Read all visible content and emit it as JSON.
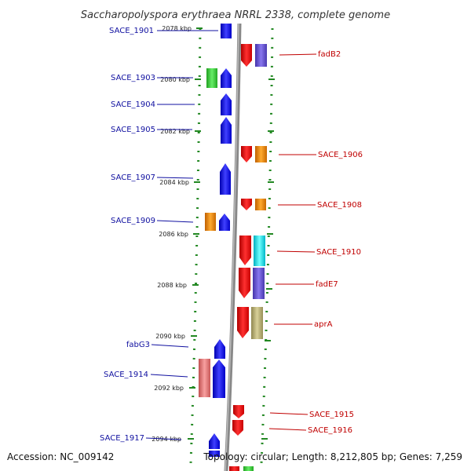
{
  "title": "Saccharopolyspora erythraea NRRL 2338, complete genome",
  "footer": {
    "accession": "Accession: NC_009142",
    "topology": "Topology: circular; Length: 8,212,805 bp; Genes: 7,259"
  },
  "kbp_labels": [
    "2078 kbp",
    "2080 kbp",
    "2082 kbp",
    "2084 kbp",
    "2086 kbp",
    "2088 kbp",
    "2090 kbp",
    "2092 kbp",
    "2094 kbp"
  ],
  "left_genes": [
    "SACE_1901",
    "SACE_1903",
    "SACE_1904",
    "SACE_1905",
    "SACE_1907",
    "SACE_1909",
    "fabG3",
    "SACE_1914",
    "SACE_1917"
  ],
  "right_genes": [
    "fadB2",
    "SACE_1906",
    "SACE_1908",
    "SACE_1910",
    "fadE7",
    "aprA",
    "SACE_1915",
    "SACE_1916"
  ],
  "colors": {
    "blue": "#1010ee",
    "red": "#ee1010",
    "green": "#33cc33",
    "orange": "#ee8800",
    "purple": "#6655cc",
    "cyan": "#00e5ee",
    "khaki": "#b8b070",
    "pink": "#e07070",
    "tick": "#228822",
    "backbone": "#888888",
    "label_left": "#1010a0",
    "label_right": "#c00000"
  }
}
